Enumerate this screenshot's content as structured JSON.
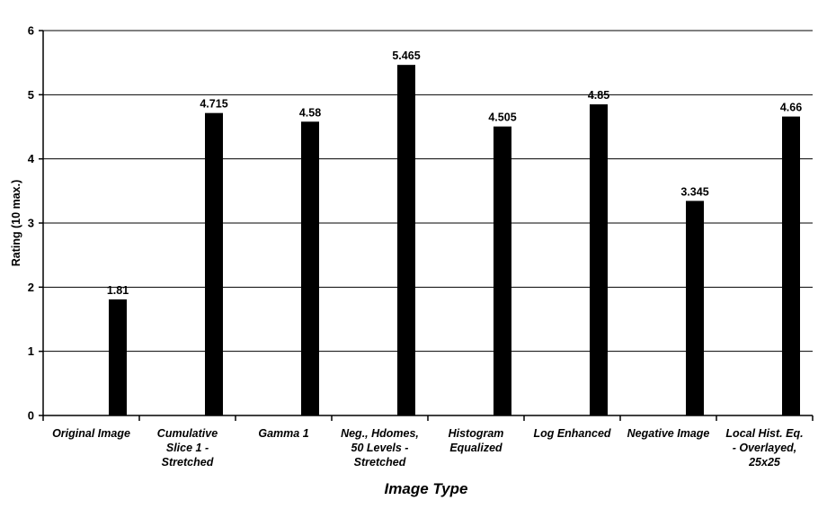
{
  "chart_data": {
    "type": "bar",
    "title": "",
    "xlabel": "Image Type",
    "ylabel": "Rating (10 max.)",
    "ylim": [
      0,
      6
    ],
    "yticks": [
      "0",
      "1",
      "2",
      "3",
      "4",
      "5",
      "6"
    ],
    "grid": true,
    "categories": [
      "Original Image",
      "Cumulative Slice 1 - Stretched",
      "Gamma 1",
      "Neg., Hdomes, 50 Levels - Stretched",
      "Histogram Equalized",
      "Log Enhanced",
      "Negative Image",
      "Local Hist. Eq. - Overlayed, 25x25"
    ],
    "category_lines": [
      [
        "Original Image"
      ],
      [
        "Cumulative",
        "Slice 1 -",
        "Stretched"
      ],
      [
        "Gamma 1"
      ],
      [
        "Neg., Hdomes,",
        "50 Levels -",
        "Stretched"
      ],
      [
        "Histogram",
        "Equalized"
      ],
      [
        "Log Enhanced"
      ],
      [
        "Negative Image"
      ],
      [
        "Local Hist. Eq.",
        "- Overlayed,",
        "25x25"
      ]
    ],
    "values": [
      1.81,
      4.715,
      4.58,
      5.465,
      4.505,
      4.85,
      3.345,
      4.66
    ],
    "data_labels": [
      "1.81",
      "4.715",
      "4.58",
      "5.465",
      "4.505",
      "4.85",
      "3.345",
      "4.66"
    ],
    "bar_color": "#000000",
    "gridline_color": "#000000"
  }
}
